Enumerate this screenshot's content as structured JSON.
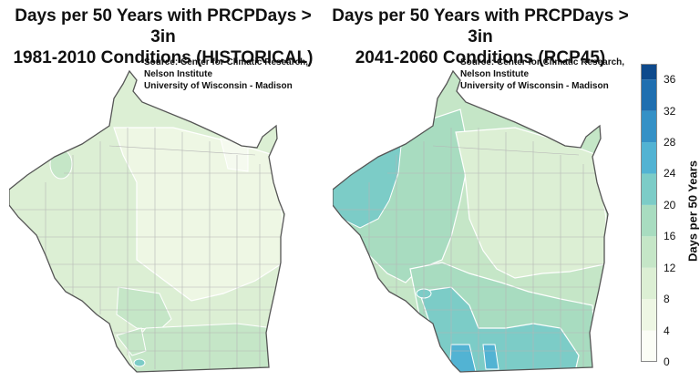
{
  "panels": [
    {
      "title_line1": "Days per 50 Years with PRCPDays > 3in",
      "title_line2": "1981-2010 Conditions (HISTORICAL)",
      "source_line1": "Source:  Center for Climatic Research,",
      "source_line2": "Nelson Institute",
      "source_line3": "University of Wisconsin - Madison"
    },
    {
      "title_line1": "Days per 50 Years with PRCPDays > 3in",
      "title_line2": "2041-2060 Conditions (RCP45)",
      "source_line1": "Source:  Center for Climatic Research,",
      "source_line2": "Nelson Institute",
      "source_line3": "University of Wisconsin - Madison"
    }
  ],
  "colorbar": {
    "label": "Days per 50 Years",
    "ticks": [
      "36",
      "32",
      "28",
      "24",
      "20",
      "16",
      "12",
      "8",
      "4",
      "0"
    ],
    "bins": [
      {
        "min": 0,
        "max": 4,
        "color": "#fbfdf6"
      },
      {
        "min": 4,
        "max": 8,
        "color": "#eef7e4"
      },
      {
        "min": 8,
        "max": 12,
        "color": "#dcefd4"
      },
      {
        "min": 12,
        "max": 16,
        "color": "#c5e6c7"
      },
      {
        "min": 16,
        "max": 20,
        "color": "#a8dcc0"
      },
      {
        "min": 20,
        "max": 24,
        "color": "#7cccc7"
      },
      {
        "min": 24,
        "max": 28,
        "color": "#52b3d3"
      },
      {
        "min": 28,
        "max": 32,
        "color": "#3591c6"
      },
      {
        "min": 32,
        "max": 36,
        "color": "#1f6fb0"
      },
      {
        "min": 36,
        "max": 38,
        "color": "#0e4a8c"
      }
    ]
  }
}
